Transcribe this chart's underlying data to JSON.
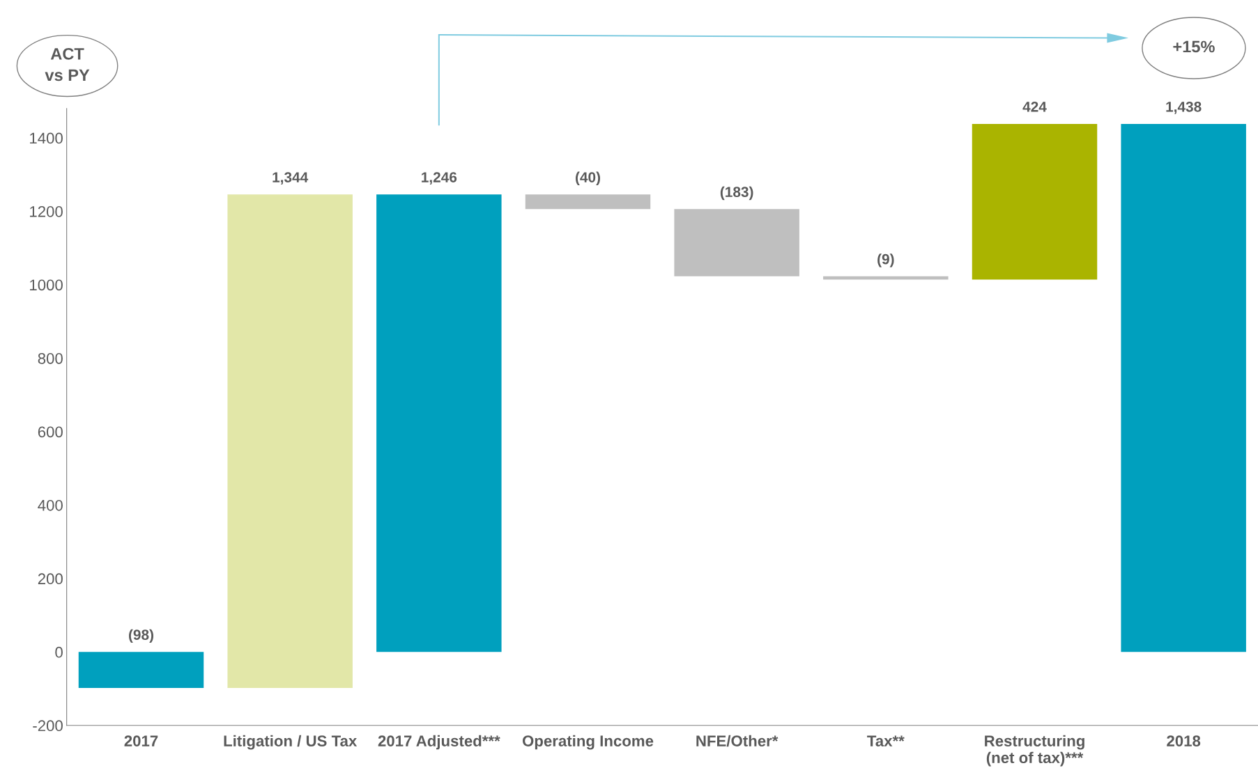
{
  "chart_data": {
    "type": "bar",
    "categories": [
      "2017",
      "Litigation / US Tax",
      "2017 Adjusted***",
      "Operating Income",
      "NFE/Other*",
      "Tax**",
      "Restructuring\n(net of tax)***",
      "2018"
    ],
    "values": [
      -98,
      1344,
      1246,
      -40,
      -183,
      -9,
      424,
      1438
    ],
    "base": [
      0,
      -98,
      0,
      1246,
      1206,
      1023,
      1014,
      0
    ],
    "colors": [
      "#00a0be",
      "#e2e7a8",
      "#00a0be",
      "#bfbfbf",
      "#bfbfbf",
      "#bfbfbf",
      "#aab400",
      "#00a0be"
    ],
    "value_labels": [
      "(98)",
      "1,344",
      "1,246",
      "(40)",
      "(183)",
      "(9)",
      "424",
      "1,438"
    ],
    "ylim": [
      -200,
      1480
    ],
    "yticks": [
      -200,
      0,
      200,
      400,
      600,
      800,
      1000,
      1200,
      1400
    ],
    "grid": false,
    "legend": false,
    "annotations": [
      "ACT\nvs PY",
      "+15%"
    ]
  }
}
